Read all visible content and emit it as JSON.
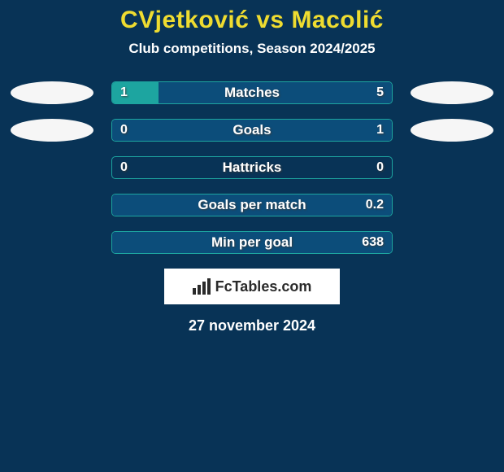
{
  "colors": {
    "background": "#083356",
    "title": "#efdc30",
    "subtitle": "#ffffff",
    "avatar": "#f6f6f6",
    "bar_border": "#1da5a0",
    "bar_left_fill": "#1da5a0",
    "bar_right_fill": "#0c4d7a",
    "brand_box_bg": "#ffffff",
    "brand_text": "#2a2a2a",
    "brand_icon": "#2a2a2a",
    "date_text": "#ffffff"
  },
  "typography": {
    "title_fontsize": 30,
    "subtitle_fontsize": 17,
    "date_fontsize": 18
  },
  "header": {
    "title": "CVjetković vs Macolić",
    "subtitle": "Club competitions, Season 2024/2025"
  },
  "rows": [
    {
      "label": "Matches",
      "left_value": "1",
      "right_value": "5",
      "left_pct": 16.7,
      "right_pct": 83.3,
      "show_avatars": true
    },
    {
      "label": "Goals",
      "left_value": "0",
      "right_value": "1",
      "left_pct": 0,
      "right_pct": 100,
      "show_avatars": true
    },
    {
      "label": "Hattricks",
      "left_value": "0",
      "right_value": "0",
      "left_pct": 0,
      "right_pct": 0,
      "show_avatars": false
    },
    {
      "label": "Goals per match",
      "left_value": "",
      "right_value": "0.2",
      "left_pct": 0,
      "right_pct": 100,
      "show_avatars": false
    },
    {
      "label": "Min per goal",
      "left_value": "",
      "right_value": "638",
      "left_pct": 0,
      "right_pct": 100,
      "show_avatars": false
    }
  ],
  "brand": {
    "icon_name": "bar-chart-icon",
    "text": "FcTables.com"
  },
  "footer": {
    "date": "27 november 2024"
  }
}
